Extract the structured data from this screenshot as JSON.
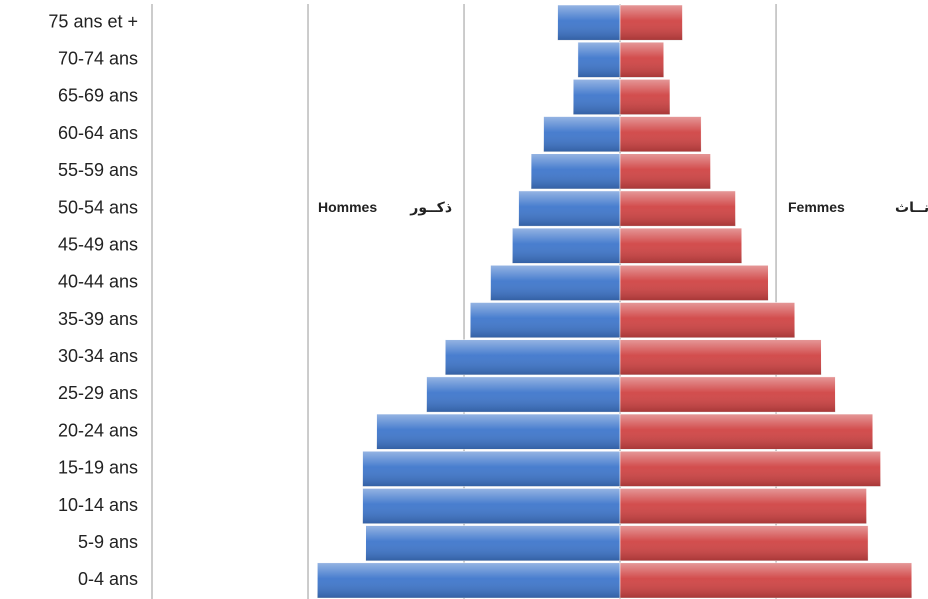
{
  "chart_data": {
    "type": "pyramid",
    "categories": [
      "75 ans et +",
      "70-74 ans",
      "65-69 ans",
      "60-64 ans",
      "55-59 ans",
      "50-54 ans",
      "45-49 ans",
      "40-44 ans",
      "35-39 ans",
      "30-34 ans",
      "25-29 ans",
      "20-24 ans",
      "15-19 ans",
      "10-14 ans",
      "5-9 ans",
      "0-4 ans"
    ],
    "series": [
      {
        "name": "Hommes",
        "name_ar": "ذكــور",
        "side": "left",
        "color": "#3f77cc",
        "values": [
          0.4,
          0.27,
          0.3,
          0.49,
          0.57,
          0.65,
          0.69,
          0.83,
          0.96,
          1.12,
          1.24,
          1.56,
          1.65,
          1.65,
          1.63,
          1.94
        ]
      },
      {
        "name": "Femmes",
        "name_ar": "إنــاث",
        "side": "right",
        "color": "#d04444",
        "values": [
          0.4,
          0.28,
          0.32,
          0.52,
          0.58,
          0.74,
          0.78,
          0.95,
          1.12,
          1.29,
          1.38,
          1.62,
          1.67,
          1.58,
          1.59,
          1.87
        ]
      }
    ],
    "xlim": [
      -3,
      1.974
    ],
    "xticks": [
      -2,
      -1,
      0,
      1
    ],
    "grid": true
  }
}
